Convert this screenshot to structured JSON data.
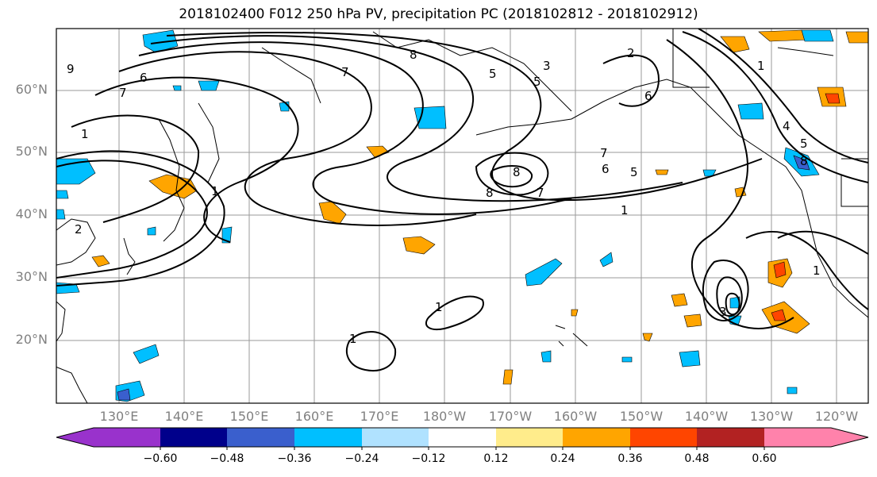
{
  "title": "2018102400 F012 250 hPa PV, precipitation PC (2018102812 - 2018102912)",
  "lat_labels": [
    "60°N",
    "50°N",
    "40°N",
    "30°N",
    "20°N"
  ],
  "lon_labels": [
    "130°E",
    "140°E",
    "150°E",
    "160°E",
    "170°E",
    "180°W",
    "170°W",
    "160°W",
    "150°W",
    "140°W",
    "130°W",
    "120°W"
  ],
  "colorbar": {
    "tick_labels": [
      "−0.60",
      "−0.48",
      "−0.36",
      "−0.24",
      "−0.12",
      "0.12",
      "0.24",
      "0.36",
      "0.48",
      "0.60"
    ],
    "colors": [
      "#9932cc",
      "#00008b",
      "#3a5fcd",
      "#00bfff",
      "#b0e2ff",
      "#ffffff",
      "#ffec8b",
      "#ffa500",
      "#ff4500",
      "#b22222",
      "#ff82ab"
    ]
  },
  "contour_labels": [
    "6",
    "7",
    "9",
    "1",
    "2",
    "7",
    "8",
    "5",
    "3",
    "5",
    "6",
    "7",
    "8",
    "8",
    "7",
    "6",
    "5",
    "1",
    "1",
    "1",
    "3",
    "1",
    "5",
    "8",
    "4",
    "1",
    "1",
    "2"
  ]
}
